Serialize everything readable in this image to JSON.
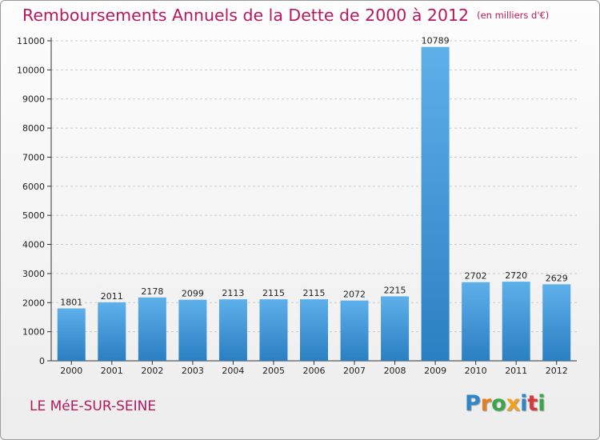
{
  "header": {
    "title": "Remboursements Annuels de la Dette de 2000 à 2012",
    "unit": "(en milliers d'€)"
  },
  "footer": {
    "city": "LE MéE-SUR-SEINE",
    "logo": {
      "letters": [
        "P",
        "r",
        "o",
        "x",
        "i",
        "t",
        "i"
      ],
      "colors": [
        "#2e86c8",
        "#e87d1e",
        "#3aa64a",
        "#f0a21b",
        "#2e86c8",
        "#d63a3a",
        "#3aa64a"
      ]
    }
  },
  "colors": {
    "accent": "#b4195e",
    "bar_light": "#5eb0ea",
    "bar_dark": "#2a7fc2",
    "axis": "#333333",
    "grid": "#cccccc"
  },
  "chart_data": {
    "type": "bar",
    "title": "Remboursements Annuels de la Dette de 2000 à 2012",
    "subtitle": "(en milliers d'€)",
    "categories": [
      "2000",
      "2001",
      "2002",
      "2003",
      "2004",
      "2005",
      "2006",
      "2007",
      "2008",
      "2009",
      "2010",
      "2011",
      "2012"
    ],
    "values": [
      1801,
      2011,
      2178,
      2099,
      2113,
      2115,
      2115,
      2072,
      2215,
      10789,
      2702,
      2720,
      2629
    ],
    "ylim": [
      0,
      11000
    ],
    "yticks": [
      0,
      1000,
      2000,
      3000,
      4000,
      5000,
      6000,
      7000,
      8000,
      9000,
      10000,
      11000
    ],
    "grid": "horizontal-dashed",
    "legend": "none"
  }
}
